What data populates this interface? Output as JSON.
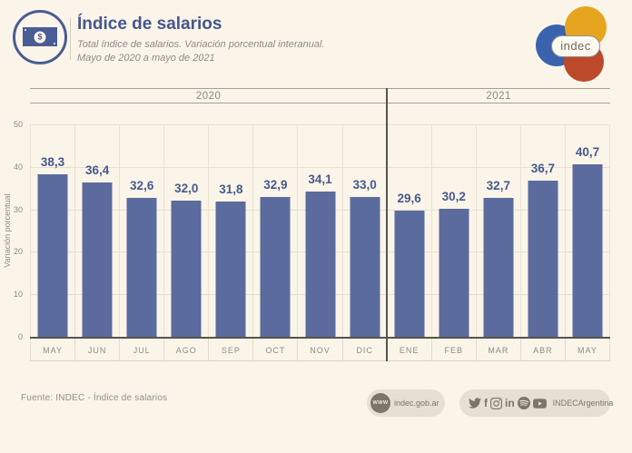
{
  "header": {
    "title": "Índice de salarios",
    "subtitle1": "Total índice de salarios. Variación porcentual interanual.",
    "subtitle2": "Mayo de 2020 a mayo de 2021",
    "icon": "money-bill-icon",
    "currency_symbol": "$"
  },
  "logo": {
    "text": "indec"
  },
  "chart_data": {
    "type": "bar",
    "title": "Índice de salarios",
    "subtitle": "Total índice de salarios. Variación porcentual interanual. Mayo de 2020 a mayo de 2021",
    "ylabel": "Variación porcentual",
    "ylim": [
      0,
      50
    ],
    "yticks": [
      0,
      10,
      20,
      30,
      40,
      50
    ],
    "grid": true,
    "legend": "none",
    "bar_color": "#5B6B9E",
    "year_groups": [
      {
        "label": "2020",
        "months": 8
      },
      {
        "label": "2021",
        "months": 5
      }
    ],
    "categories": [
      "MAY",
      "JUN",
      "JUL",
      "AGO",
      "SEP",
      "OCT",
      "NOV",
      "DIC",
      "ENE",
      "FEB",
      "MAR",
      "ABR",
      "MAY"
    ],
    "values": [
      38.3,
      36.4,
      32.6,
      32.0,
      31.8,
      32.9,
      34.1,
      33.0,
      29.6,
      30.2,
      32.7,
      36.7,
      40.7
    ],
    "value_labels": [
      "38,3",
      "36,4",
      "32,6",
      "32,0",
      "31,8",
      "32,9",
      "34,1",
      "33,0",
      "29,6",
      "30,2",
      "32,7",
      "36,7",
      "40,7"
    ]
  },
  "footer": {
    "source": "Fuente: INDEC - Índice de salarios",
    "website_icon": "www-globe-icon",
    "website_icon_text": "WWW",
    "website": "indec.gob.ar",
    "social_icons": [
      "twitter-icon",
      "facebook-icon",
      "instagram-icon",
      "linkedin-icon",
      "spotify-icon",
      "youtube-icon"
    ],
    "facebook_glyph": "f",
    "linkedin_glyph": "in",
    "social_handle": "INDECArgentina"
  },
  "colors": {
    "background": "#FBF5E9",
    "bar": "#5B6B9E",
    "accent_blue": "#44568E",
    "text_gray": "#8C8C86",
    "logo_blue": "#3A63AE",
    "logo_yellow": "#E7A51F",
    "logo_red": "#BD492B",
    "badge_bg": "#E6E0D4",
    "badge_fg": "#7B756A"
  }
}
